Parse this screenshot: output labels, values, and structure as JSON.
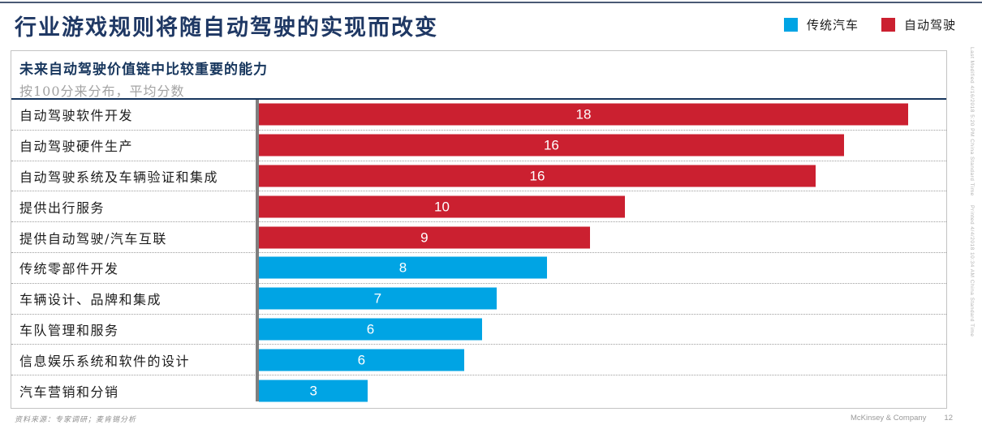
{
  "page": {
    "title": "行业游戏规则将随自动驾驶的实现而改变",
    "footer_source": "资料来源：专家调研；麦肯锡分析",
    "footer_brand": "McKinsey & Company",
    "footer_page_number": "12",
    "side_text_top": "Last Modified 4/16/2018 5:20 PM China Standard Time",
    "side_text_bottom": "Printed 4/4/2018 10:34 AM China Standard Time"
  },
  "legend": {
    "position": "top-right",
    "items": [
      {
        "label": "传统汽车",
        "color": "#00a4e4"
      },
      {
        "label": "自动驾驶",
        "color": "#cb2030"
      }
    ]
  },
  "chart_data": {
    "type": "bar",
    "orientation": "horizontal",
    "title": "未来自动驾驶价值链中比较重要的能力",
    "subtitle": "按100分来分布，平均分数",
    "value_labels": "inside-center-white",
    "grid": "dotted-row-separators",
    "axis_baseline_color": "#7f7f7f",
    "colors": {
      "传统汽车": "#00a4e4",
      "自动驾驶": "#cb2030"
    },
    "categories": [
      "自动驾驶软件开发",
      "自动驾驶硬件生产",
      "自动驾驶系统及车辆验证和集成",
      "提供出行服务",
      "提供自动驾驶/汽车互联",
      "传统零部件开发",
      "车辆设计、品牌和集成",
      "车队管理和服务",
      "信息娱乐系统和软件的设计",
      "汽车营销和分销"
    ],
    "values": [
      18,
      16,
      16,
      10,
      9,
      8,
      7,
      6,
      6,
      3
    ],
    "rows": [
      {
        "label": "自动驾驶软件开发",
        "value": 18,
        "group": "自动驾驶",
        "length_pct": 94.0
      },
      {
        "label": "自动驾驶硬件生产",
        "value": 16,
        "group": "自动驾驶",
        "length_pct": 84.7
      },
      {
        "label": "自动驾驶系统及车辆验证和集成",
        "value": 16,
        "group": "自动驾驶",
        "length_pct": 80.6
      },
      {
        "label": "提供出行服务",
        "value": 10,
        "group": "自动驾驶",
        "length_pct": 53.0
      },
      {
        "label": "提供自动驾驶/汽车互联",
        "value": 9,
        "group": "自动驾驶",
        "length_pct": 47.9
      },
      {
        "label": "传统零部件开发",
        "value": 8,
        "group": "传统汽车",
        "length_pct": 41.7
      },
      {
        "label": "车辆设计、品牌和集成",
        "value": 7,
        "group": "传统汽车",
        "length_pct": 34.4
      },
      {
        "label": "车队管理和服务",
        "value": 6,
        "group": "传统汽车",
        "length_pct": 32.3
      },
      {
        "label": "信息娱乐系统和软件的设计",
        "value": 6,
        "group": "传统汽车",
        "length_pct": 29.7
      },
      {
        "label": "汽车营销和分销",
        "value": 3,
        "group": "传统汽车",
        "length_pct": 15.8
      }
    ]
  }
}
